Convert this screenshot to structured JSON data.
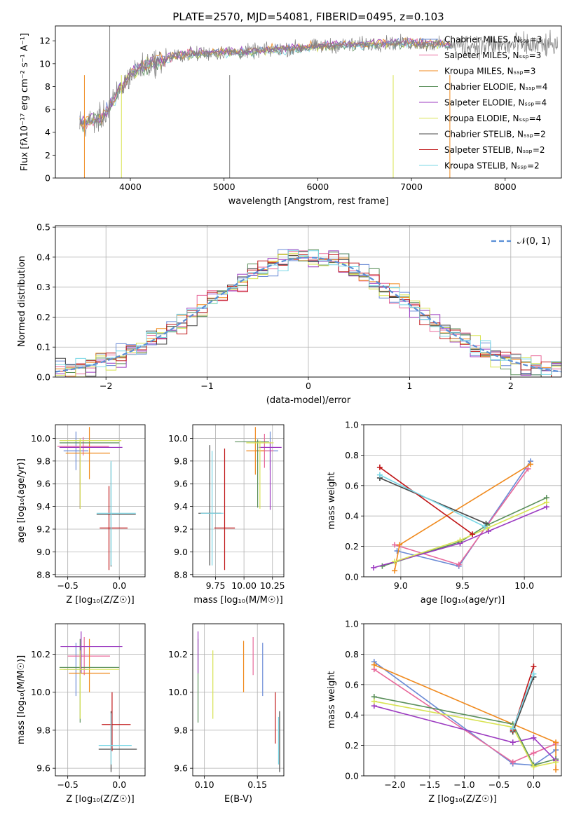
{
  "figure": {
    "title": "PLATE=2570, MJD=54081, FIBERID=0495, z=0.103"
  },
  "colors": {
    "chabrier_miles": "#6a8bd6",
    "salpeter_miles": "#e8689a",
    "kroupa_miles": "#f08a1e",
    "chabrier_elodie": "#5a8f5a",
    "salpeter_elodie": "#9c3bc1",
    "kroupa_elodie": "#d8e352",
    "chabrier_stelib": "#484848",
    "salpeter_stelib": "#c0181a",
    "kroupa_stelib": "#7ad7e6",
    "gauss": "#5a8fd6",
    "grid": "#b0b0b0"
  },
  "chart_data": [
    {
      "id": "spectrum",
      "type": "line",
      "xlabel": "wavelength [Angstrom, rest frame]",
      "ylabel": "Flux [fλ10⁻¹⁷ erg cm⁻² s⁻¹ A⁻¹]",
      "xlim": [
        3200,
        8600
      ],
      "ylim": [
        0,
        13.3
      ],
      "xticks": [
        4000,
        5000,
        6000,
        7000,
        8000
      ],
      "yticks": [
        0,
        2,
        4,
        6,
        8,
        10,
        12
      ],
      "grid": false,
      "legend_position": "right",
      "legend": [
        {
          "label": "Chabrier MILES, N_SSP=3",
          "key": "chabrier_miles"
        },
        {
          "label": "Salpeter MILES, N_SSP=3",
          "key": "salpeter_miles"
        },
        {
          "label": "Kroupa MILES, N_SSP=3",
          "key": "kroupa_miles"
        },
        {
          "label": "Chabrier ELODIE, N_SSP=4",
          "key": "chabrier_elodie"
        },
        {
          "label": "Salpeter ELODIE, N_SSP=4",
          "key": "salpeter_elodie"
        },
        {
          "label": "Kroupa ELODIE, N_SSP=4",
          "key": "kroupa_elodie"
        },
        {
          "label": "Chabrier STELIB, N_SSP=2",
          "key": "chabrier_stelib"
        },
        {
          "label": "Salpeter STELIB, N_SSP=2",
          "key": "salpeter_stelib"
        },
        {
          "label": "Kroupa STELIB, N_SSP=2",
          "key": "kroupa_stelib"
        }
      ],
      "data_curve_x": [
        3500,
        3600,
        3700,
        3800,
        3900,
        4000,
        4100,
        4200,
        4300,
        4400,
        4500,
        4600,
        4800,
        5000,
        5200,
        5500,
        5800,
        6000,
        6200,
        6500,
        6800,
        7000,
        7200,
        7400
      ],
      "data_curve_y": [
        4.8,
        5.0,
        5.3,
        6.5,
        7.8,
        9.0,
        9.6,
        10.0,
        10.2,
        10.5,
        10.7,
        10.8,
        10.9,
        11.0,
        11.0,
        11.2,
        11.4,
        11.5,
        11.6,
        11.7,
        11.8,
        11.8,
        11.7,
        11.6
      ]
    },
    {
      "id": "residuals",
      "type": "histogram",
      "xlabel": "(data-model)/error",
      "ylabel": "Normed distribution",
      "xlim": [
        -2.5,
        2.5
      ],
      "ylim": [
        0,
        0.505
      ],
      "xticks": [
        -2,
        -1,
        0,
        1,
        2
      ],
      "yticks": [
        0.0,
        0.1,
        0.2,
        0.3,
        0.4,
        0.5
      ],
      "grid": true,
      "legend": [
        {
          "label": "𝒩(0, 1)",
          "key": "gauss"
        }
      ],
      "bin_width": 0.1,
      "gauss_mean": 0,
      "gauss_sigma": 1
    },
    {
      "id": "age_vs_Z",
      "type": "errorbar",
      "xlabel": "Z [log₁₀(Z/Z☉)]",
      "ylabel": "age  [log₁₀(age/yr)]",
      "xlim": [
        -0.62,
        0.25
      ],
      "ylim": [
        8.78,
        10.12
      ],
      "xticks": [
        -0.5,
        0.0
      ],
      "yticks": [
        8.8,
        9.0,
        9.2,
        9.4,
        9.6,
        9.8,
        10.0
      ],
      "grid": true,
      "points": [
        {
          "key": "chabrier_miles",
          "x": -0.42,
          "xerr": [
            0.12,
            0.12
          ],
          "y": 9.89,
          "yerr": [
            0.17,
            0.17
          ]
        },
        {
          "key": "salpeter_miles",
          "x": -0.35,
          "xerr": [
            0.25,
            0.25
          ],
          "y": 9.93,
          "yerr": [
            0.08,
            0.08
          ]
        },
        {
          "key": "kroupa_miles",
          "x": -0.29,
          "xerr": [
            0.23,
            0.2
          ],
          "y": 9.87,
          "yerr": [
            0.23,
            0.23
          ]
        },
        {
          "key": "chabrier_elodie",
          "x": -0.38,
          "xerr": [
            0.2,
            0.38
          ],
          "y": 9.96,
          "yerr": [
            0.58,
            0.02
          ]
        },
        {
          "key": "salpeter_elodie",
          "x": -0.38,
          "xerr": [
            0.2,
            0.41
          ],
          "y": 9.92,
          "yerr": [
            0.54,
            0.05
          ]
        },
        {
          "key": "kroupa_elodie",
          "x": -0.38,
          "xerr": [
            0.2,
            0.4
          ],
          "y": 9.98,
          "yerr": [
            0.6,
            0.02
          ]
        },
        {
          "key": "chabrier_stelib",
          "x": -0.08,
          "xerr": [
            0.14,
            0.24
          ],
          "y": 9.33,
          "yerr": [
            0.46,
            0.46
          ]
        },
        {
          "key": "salpeter_stelib",
          "x": -0.1,
          "xerr": [
            0.09,
            0.18
          ],
          "y": 9.21,
          "yerr": [
            0.37,
            0.37
          ]
        },
        {
          "key": "kroupa_stelib",
          "x": -0.08,
          "xerr": [
            0.14,
            0.24
          ],
          "y": 9.34,
          "yerr": [
            0.46,
            0.46
          ]
        }
      ]
    },
    {
      "id": "age_vs_mass",
      "type": "errorbar",
      "xlabel": "mass [log₁₀(M/M☉)]",
      "ylabel": "",
      "xlim": [
        9.55,
        10.35
      ],
      "ylim": [
        8.78,
        10.12
      ],
      "xticks": [
        9.75,
        10.0,
        10.25
      ],
      "yticks": [
        8.8,
        9.0,
        9.2,
        9.4,
        9.6,
        9.8,
        10.0
      ],
      "grid": true,
      "points": [
        {
          "key": "chabrier_miles",
          "x": 10.23,
          "xerr": [
            0.08,
            0.07
          ],
          "y": 9.89,
          "yerr": [
            0.17,
            0.17
          ]
        },
        {
          "key": "salpeter_miles",
          "x": 10.18,
          "xerr": [
            0.08,
            0.08
          ],
          "y": 9.89,
          "yerr": [
            0.15,
            0.15
          ]
        },
        {
          "key": "kroupa_miles",
          "x": 10.1,
          "xerr": [
            0.08,
            0.08
          ],
          "y": 9.89,
          "yerr": [
            0.21,
            0.21
          ]
        },
        {
          "key": "chabrier_elodie",
          "x": 10.12,
          "xerr": [
            0.2,
            0.1
          ],
          "y": 9.97,
          "yerr": [
            0.58,
            0.02
          ]
        },
        {
          "key": "salpeter_elodie",
          "x": 10.23,
          "xerr": [
            0.1,
            0.1
          ],
          "y": 9.92,
          "yerr": [
            0.55,
            0.05
          ]
        },
        {
          "key": "kroupa_elodie",
          "x": 10.14,
          "xerr": [
            0.12,
            0.12
          ],
          "y": 9.96,
          "yerr": [
            0.58,
            0.02
          ]
        },
        {
          "key": "chabrier_stelib",
          "x": 9.7,
          "xerr": [
            0.1,
            0.1
          ],
          "y": 9.34,
          "yerr": [
            0.46,
            0.6
          ]
        },
        {
          "key": "salpeter_stelib",
          "x": 9.83,
          "xerr": [
            0.09,
            0.09
          ],
          "y": 9.21,
          "yerr": [
            0.37,
            0.7
          ]
        },
        {
          "key": "kroupa_stelib",
          "x": 9.72,
          "xerr": [
            0.1,
            0.1
          ],
          "y": 9.34,
          "yerr": [
            0.46,
            0.55
          ]
        }
      ]
    },
    {
      "id": "mass_weight_vs_age",
      "type": "line",
      "xlabel": "age  [log₁₀(age/yr)]",
      "ylabel": "mass weight",
      "xlim": [
        8.7,
        10.3
      ],
      "ylim": [
        0.0,
        1.0
      ],
      "xticks": [
        9.0,
        9.5,
        10.0
      ],
      "yticks": [
        0.0,
        0.2,
        0.4,
        0.6,
        0.8,
        1.0
      ],
      "grid": true,
      "series": [
        {
          "key": "chabrier_miles",
          "x": [
            8.97,
            9.47,
            10.05
          ],
          "y": [
            0.17,
            0.07,
            0.76
          ]
        },
        {
          "key": "salpeter_miles",
          "x": [
            8.95,
            9.47,
            10.03
          ],
          "y": [
            0.21,
            0.08,
            0.71
          ]
        },
        {
          "key": "kroupa_miles",
          "x": [
            8.95,
            8.99,
            10.05
          ],
          "y": [
            0.04,
            0.21,
            0.74
          ]
        },
        {
          "key": "chabrier_elodie",
          "x": [
            8.85,
            9.48,
            9.7,
            10.18
          ],
          "y": [
            0.07,
            0.23,
            0.34,
            0.52
          ]
        },
        {
          "key": "salpeter_elodie",
          "x": [
            8.78,
            9.48,
            9.71,
            10.18
          ],
          "y": [
            0.06,
            0.22,
            0.3,
            0.46
          ]
        },
        {
          "key": "kroupa_elodie",
          "x": [
            8.95,
            9.48,
            9.7,
            10.18
          ],
          "y": [
            0.1,
            0.24,
            0.32,
            0.49
          ]
        },
        {
          "key": "chabrier_stelib",
          "x": [
            8.83,
            9.69
          ],
          "y": [
            0.65,
            0.35
          ]
        },
        {
          "key": "salpeter_stelib",
          "x": [
            8.83,
            9.58
          ],
          "y": [
            0.72,
            0.28
          ]
        },
        {
          "key": "kroupa_stelib",
          "x": [
            8.83,
            9.68
          ],
          "y": [
            0.67,
            0.33
          ]
        }
      ]
    },
    {
      "id": "mass_vs_Z",
      "type": "errorbar",
      "xlabel": "Z [log₁₀(Z/Z☉)]",
      "ylabel": "mass [log₁₀(M/M☉)]",
      "xlim": [
        -0.62,
        0.25
      ],
      "ylim": [
        9.56,
        10.36
      ],
      "xticks": [
        -0.5,
        0.0
      ],
      "yticks": [
        9.6,
        9.8,
        10.0,
        10.2
      ],
      "grid": true,
      "points": [
        {
          "key": "chabrier_miles",
          "x": -0.42,
          "xerr": [
            0.12,
            0.12
          ],
          "y": 10.12,
          "yerr": [
            0.14,
            0.14
          ]
        },
        {
          "key": "salpeter_miles",
          "x": -0.34,
          "xerr": [
            0.16,
            0.25
          ],
          "y": 10.19,
          "yerr": [
            0.1,
            0.1
          ]
        },
        {
          "key": "kroupa_miles",
          "x": -0.29,
          "xerr": [
            0.2,
            0.2
          ],
          "y": 10.1,
          "yerr": [
            0.1,
            0.18
          ]
        },
        {
          "key": "chabrier_elodie",
          "x": -0.38,
          "xerr": [
            0.2,
            0.38
          ],
          "y": 10.13,
          "yerr": [
            0.29,
            0.15
          ]
        },
        {
          "key": "salpeter_elodie",
          "x": -0.37,
          "xerr": [
            0.2,
            0.4
          ],
          "y": 10.24,
          "yerr": [
            0.14,
            0.08
          ]
        },
        {
          "key": "kroupa_elodie",
          "x": -0.38,
          "xerr": [
            0.2,
            0.38
          ],
          "y": 10.12,
          "yerr": [
            0.26,
            0.1
          ]
        },
        {
          "key": "chabrier_stelib",
          "x": -0.08,
          "xerr": [
            0.12,
            0.25
          ],
          "y": 9.7,
          "yerr": [
            0.12,
            0.2
          ]
        },
        {
          "key": "salpeter_stelib",
          "x": -0.07,
          "xerr": [
            0.1,
            0.18
          ],
          "y": 9.83,
          "yerr": [
            0.14,
            0.17
          ]
        },
        {
          "key": "kroupa_stelib",
          "x": -0.08,
          "xerr": [
            0.12,
            0.2
          ],
          "y": 9.72,
          "yerr": [
            0.1,
            0.17
          ]
        }
      ]
    },
    {
      "id": "mass_vs_ebv",
      "type": "errorbar",
      "xlabel": "E(B-V)",
      "ylabel": "",
      "xlim": [
        0.089,
        0.175
      ],
      "ylim": [
        9.56,
        10.36
      ],
      "xticks": [
        0.1,
        0.15
      ],
      "yticks": [
        9.6,
        9.8,
        10.0,
        10.2
      ],
      "grid": true,
      "points": [
        {
          "key": "chabrier_miles",
          "x": 0.155,
          "xerr": [
            0,
            0
          ],
          "y": 10.12,
          "yerr": [
            0.14,
            0.14
          ]
        },
        {
          "key": "salpeter_miles",
          "x": 0.146,
          "xerr": [
            0,
            0
          ],
          "y": 10.19,
          "yerr": [
            0.1,
            0.1
          ]
        },
        {
          "key": "kroupa_miles",
          "x": 0.137,
          "xerr": [
            0,
            0
          ],
          "y": 10.1,
          "yerr": [
            0.1,
            0.17
          ]
        },
        {
          "key": "chabrier_elodie",
          "x": 0.094,
          "xerr": [
            0,
            0
          ],
          "y": 10.13,
          "yerr": [
            0.29,
            0.15
          ]
        },
        {
          "key": "salpeter_elodie",
          "x": 0.094,
          "xerr": [
            0,
            0
          ],
          "y": 10.24,
          "yerr": [
            0.14,
            0.08
          ]
        },
        {
          "key": "kroupa_elodie",
          "x": 0.108,
          "xerr": [
            0,
            0
          ],
          "y": 10.12,
          "yerr": [
            0.26,
            0.1
          ]
        },
        {
          "key": "chabrier_stelib",
          "x": 0.171,
          "xerr": [
            0,
            0
          ],
          "y": 9.7,
          "yerr": [
            0.12,
            0.2
          ]
        },
        {
          "key": "salpeter_stelib",
          "x": 0.167,
          "xerr": [
            0,
            0
          ],
          "y": 9.83,
          "yerr": [
            0.1,
            0.17
          ]
        },
        {
          "key": "kroupa_stelib",
          "x": 0.17,
          "xerr": [
            0,
            0
          ],
          "y": 9.72,
          "yerr": [
            0.1,
            0.15
          ]
        }
      ]
    },
    {
      "id": "mass_weight_vs_Z",
      "type": "line",
      "xlabel": "Z [log₁₀(Z/Z☉)]",
      "ylabel": "mass weight",
      "xlim": [
        -2.45,
        0.4
      ],
      "ylim": [
        0.0,
        1.0
      ],
      "xticks": [
        -2.0,
        -1.5,
        -1.0,
        -0.5,
        0.0
      ],
      "yticks": [
        0.0,
        0.2,
        0.4,
        0.6,
        0.8,
        1.0
      ],
      "grid": true,
      "series": [
        {
          "key": "chabrier_miles",
          "x": [
            -2.3,
            -0.3,
            0.0,
            0.32
          ],
          "y": [
            0.75,
            0.08,
            0.07,
            0.17
          ]
        },
        {
          "key": "salpeter_miles",
          "x": [
            -2.3,
            -0.3,
            0.0,
            0.32
          ],
          "y": [
            0.7,
            0.09,
            0.15,
            0.21
          ]
        },
        {
          "key": "kroupa_miles",
          "x": [
            -2.3,
            0.32,
            0.32
          ],
          "y": [
            0.73,
            0.22,
            0.04
          ]
        },
        {
          "key": "chabrier_elodie",
          "x": [
            -2.3,
            -0.3,
            0.0,
            0.32
          ],
          "y": [
            0.52,
            0.34,
            0.07,
            0.11
          ]
        },
        {
          "key": "salpeter_elodie",
          "x": [
            -2.3,
            -0.3,
            0.0,
            0.32
          ],
          "y": [
            0.46,
            0.22,
            0.25,
            0.1
          ]
        },
        {
          "key": "kroupa_elodie",
          "x": [
            -2.3,
            -0.3,
            0.0,
            0.32
          ],
          "y": [
            0.49,
            0.32,
            0.06,
            0.09
          ]
        },
        {
          "key": "chabrier_stelib",
          "x": [
            -0.3,
            0.0
          ],
          "y": [
            0.29,
            0.65
          ]
        },
        {
          "key": "salpeter_stelib",
          "x": [
            -0.3,
            0.0
          ],
          "y": [
            0.3,
            0.72
          ]
        },
        {
          "key": "kroupa_stelib",
          "x": [
            -0.3,
            0.0
          ],
          "y": [
            0.31,
            0.67
          ]
        }
      ]
    }
  ]
}
